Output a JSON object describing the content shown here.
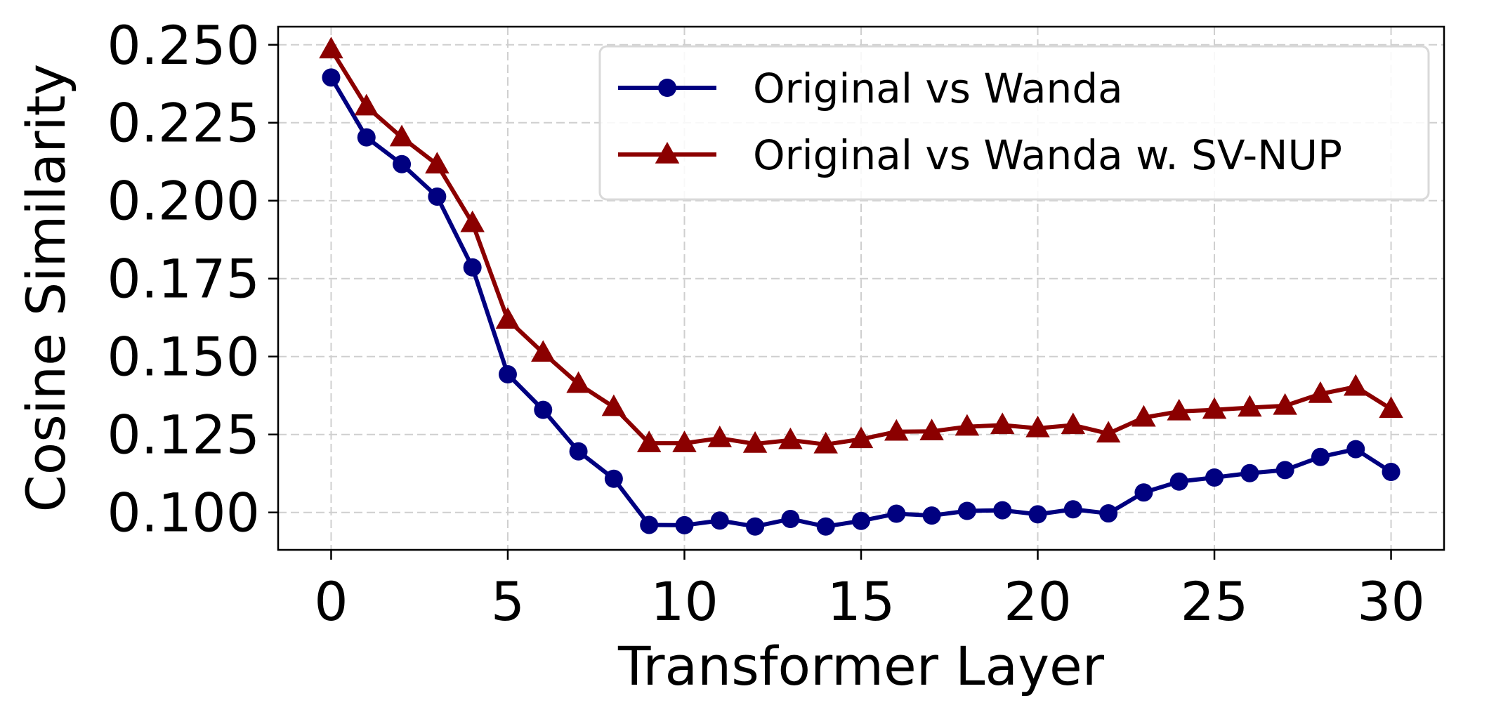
{
  "chart_data": {
    "type": "line",
    "title": "",
    "xlabel": "Transformer Layer",
    "ylabel": "Cosine Similarity",
    "xlim": [
      -1.5,
      31.5
    ],
    "ylim": [
      0.088,
      0.2558
    ],
    "xticks": [
      0,
      5,
      10,
      15,
      20,
      25,
      30
    ],
    "yticks": [
      0.1,
      0.125,
      0.15,
      0.175,
      0.2,
      0.225,
      0.25
    ],
    "ytick_labels": [
      "0.100",
      "0.125",
      "0.150",
      "0.175",
      "0.200",
      "0.225",
      "0.250"
    ],
    "grid": true,
    "legend_position": "top-right",
    "x": [
      0,
      1,
      2,
      3,
      4,
      5,
      6,
      7,
      8,
      9,
      10,
      11,
      12,
      13,
      14,
      15,
      16,
      17,
      18,
      19,
      20,
      21,
      22,
      23,
      24,
      25,
      26,
      27,
      28,
      29,
      30
    ],
    "series": [
      {
        "name": "Original vs Wanda",
        "color": "#000080",
        "marker": "circle",
        "values": [
          0.2395,
          0.2203,
          0.2117,
          0.2013,
          0.1786,
          0.1443,
          0.1329,
          0.1196,
          0.1108,
          0.096,
          0.0959,
          0.0974,
          0.0955,
          0.0979,
          0.0955,
          0.0973,
          0.0996,
          0.099,
          0.1005,
          0.1007,
          0.0994,
          0.101,
          0.0997,
          0.1064,
          0.1099,
          0.1112,
          0.1126,
          0.1136,
          0.1178,
          0.1203,
          0.113
        ]
      },
      {
        "name": "Original vs Wanda w. SV-NUP",
        "color": "#8b0000",
        "marker": "triangle",
        "values": [
          0.2485,
          0.2302,
          0.2203,
          0.2116,
          0.1928,
          0.1618,
          0.1512,
          0.1412,
          0.1338,
          0.1222,
          0.1222,
          0.1238,
          0.122,
          0.1232,
          0.1218,
          0.1235,
          0.1259,
          0.126,
          0.1275,
          0.128,
          0.127,
          0.128,
          0.1253,
          0.1304,
          0.1324,
          0.1329,
          0.1336,
          0.1342,
          0.138,
          0.1403,
          0.1332
        ]
      }
    ]
  }
}
